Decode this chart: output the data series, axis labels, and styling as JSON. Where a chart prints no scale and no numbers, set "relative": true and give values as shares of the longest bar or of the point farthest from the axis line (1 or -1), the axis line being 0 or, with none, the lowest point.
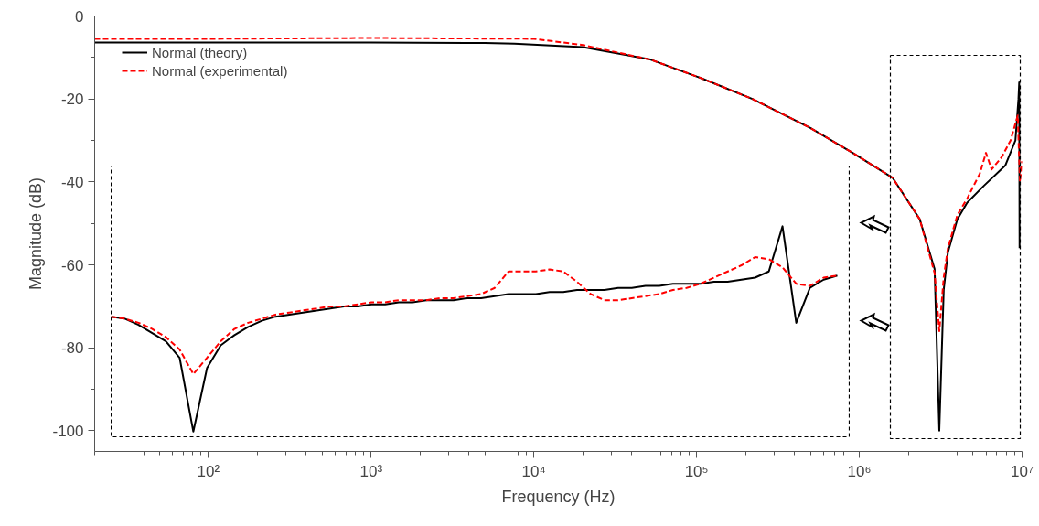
{
  "chart_data": [
    {
      "type": "line",
      "xlabel": "Frequency (Hz)",
      "ylabel": "Magnitude (dB)",
      "log": "x",
      "xlim": [
        20,
        10000000
      ],
      "ylim": [
        -105,
        0
      ],
      "xticks": [
        {
          "value": 100,
          "label": "10²"
        },
        {
          "value": 1000,
          "label": "10³"
        },
        {
          "value": 10000,
          "label": "10⁴"
        },
        {
          "value": 100000,
          "label": "10⁵"
        },
        {
          "value": 1000000,
          "label": "10⁶"
        },
        {
          "value": 10000000,
          "label": "10⁷"
        }
      ],
      "yticks": [
        0,
        -20,
        -40,
        -60,
        -80,
        -100
      ],
      "legend": "top left",
      "grid": false,
      "marker": "none",
      "series": [
        {
          "name": "Normal (theory)",
          "color": "#000000",
          "line_style": "solid",
          "x": [
            20,
            100,
            1000,
            5000,
            7600,
            20000,
            52000,
            107000,
            220000,
            500000,
            910000,
            1600000,
            2350000,
            2900000,
            3100000,
            3300000,
            3500000,
            4000000,
            4600000,
            5800000,
            7900000,
            9100000,
            9500000,
            9600000,
            9650000
          ],
          "values": [
            -6.4,
            -6.4,
            -6.4,
            -6.5,
            -6.7,
            -7.5,
            -10.5,
            -15,
            -20,
            -27,
            -33,
            -39,
            -49,
            -61,
            -100,
            -66,
            -57,
            -49,
            -45,
            -41,
            -36,
            -30,
            -20,
            -16,
            -56
          ]
        },
        {
          "name": "Normal (experimental)",
          "color": "#ff0000",
          "line_style": "dashed",
          "x": [
            20,
            100,
            1000,
            10000,
            20000,
            52000,
            107000,
            220000,
            500000,
            910000,
            1600000,
            2350000,
            2900000,
            3100000,
            3300000,
            3500000,
            4000000,
            4600000,
            5500000,
            6000000,
            6500000,
            7500000,
            8500000,
            9400000,
            9700000,
            10000000
          ],
          "values": [
            -5.5,
            -5.5,
            -5.3,
            -5.5,
            -7,
            -10.5,
            -15,
            -20,
            -27,
            -33,
            -39,
            -49,
            -62,
            -76,
            -63,
            -56,
            -48,
            -44,
            -38,
            -33,
            -37,
            -34,
            -30,
            -24,
            -40,
            -35
          ]
        }
      ]
    },
    {
      "type": "line",
      "relative": true,
      "marker": "none",
      "categories": [
        null,
        null,
        null,
        null,
        null,
        null,
        null,
        null,
        null,
        null,
        null,
        null,
        null,
        null,
        null,
        null,
        null,
        null,
        null,
        null,
        null,
        null,
        null,
        null,
        null,
        null,
        null,
        null,
        null,
        null,
        null,
        null,
        null,
        null,
        null,
        null,
        null,
        null,
        null,
        null,
        null,
        null,
        null,
        null,
        null,
        null,
        null,
        null,
        null,
        null,
        null,
        null,
        null,
        null
      ],
      "series": [
        {
          "color": "#000000",
          "line_style": "solid",
          "values": [
            0.56,
            0.55,
            0.52,
            0.48,
            0.44,
            0.36,
            0,
            0.31,
            0.42,
            0.47,
            0.51,
            0.54,
            0.56,
            0.57,
            0.58,
            0.59,
            0.6,
            0.61,
            0.61,
            0.62,
            0.62,
            0.63,
            0.63,
            0.64,
            0.64,
            0.64,
            0.65,
            0.65,
            0.66,
            0.67,
            0.67,
            0.67,
            0.68,
            0.68,
            0.69,
            0.69,
            0.69,
            0.7,
            0.7,
            0.71,
            0.71,
            0.72,
            0.72,
            0.72,
            0.73,
            0.73,
            0.74,
            0.75,
            0.78,
            1,
            0.53,
            0.7,
            0.74,
            0.76
          ]
        },
        {
          "color": "#ff0000",
          "line_style": "dashed",
          "values": [
            0.56,
            0.55,
            0.53,
            0.5,
            0.46,
            0.4,
            0.28,
            0.36,
            0.44,
            0.5,
            0.53,
            0.55,
            0.57,
            0.58,
            0.59,
            0.6,
            0.61,
            0.61,
            0.62,
            0.63,
            0.63,
            0.64,
            0.64,
            0.64,
            0.65,
            0.65,
            0.66,
            0.67,
            0.7,
            0.78,
            0.78,
            0.78,
            0.79,
            0.78,
            0.73,
            0.67,
            0.64,
            0.64,
            0.65,
            0.66,
            0.67,
            0.69,
            0.7,
            0.72,
            0.75,
            0.78,
            0.81,
            0.85,
            0.84,
            0.8,
            0.72,
            0.71,
            0.75,
            0.76
          ]
        }
      ]
    }
  ]
}
